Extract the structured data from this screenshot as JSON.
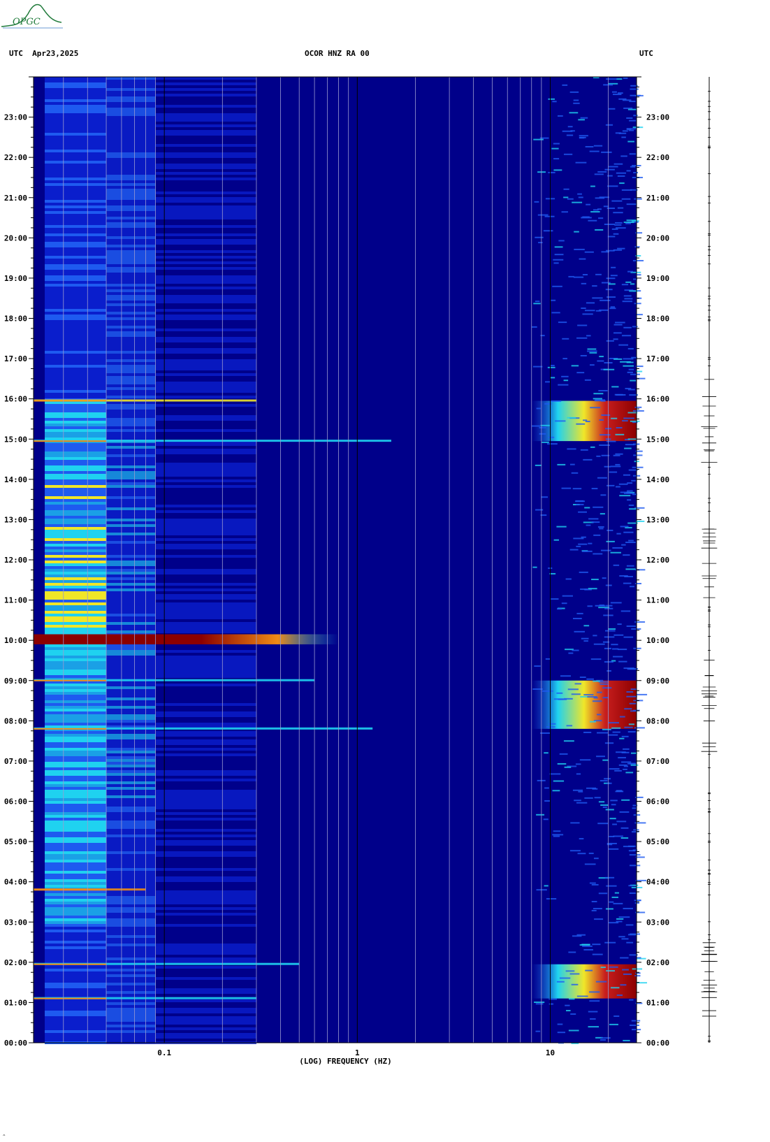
{
  "header": {
    "logo_text": "OPGC",
    "left": "UTC  Apr23,2025",
    "center": "OCOR HNZ RA 00",
    "right": "UTC"
  },
  "colors": {
    "background": "#00008a",
    "low": "#0a1ecc",
    "mid": "#1e5af0",
    "cyan": "#1fd2f0",
    "yellow": "#f0e628",
    "orange": "#f08c14",
    "red": "#c81e1e",
    "darkred": "#8c0000",
    "axis": "#000000",
    "logo": "#1f7a3a"
  },
  "chart_data": {
    "type": "heatmap",
    "title": "OCOR HNZ RA 00",
    "date": "Apr23,2025",
    "xlabel": "(LOG) FREQUENCY (HZ)",
    "ylabel": "UTC",
    "x_scale": "log",
    "xlim": [
      0.021,
      28
    ],
    "x_ticks": [
      0.1,
      1,
      10
    ],
    "x_tick_labels": [
      "0.1",
      "1",
      "10"
    ],
    "ylim": [
      0,
      24
    ],
    "y_ticks": [
      "00:00",
      "01:00",
      "02:00",
      "03:00",
      "04:00",
      "05:00",
      "06:00",
      "07:00",
      "08:00",
      "09:00",
      "10:00",
      "11:00",
      "12:00",
      "13:00",
      "14:00",
      "15:00",
      "16:00",
      "17:00",
      "18:00",
      "19:00",
      "20:00",
      "21:00",
      "22:00",
      "23:00"
    ],
    "grid": true,
    "color_scale": [
      "dark blue",
      "blue",
      "cyan",
      "yellow",
      "orange",
      "red",
      "dark red"
    ],
    "features": [
      {
        "name": "low-frequency microseism band",
        "f_range": [
          0.021,
          0.05
        ],
        "t_range": [
          0,
          24
        ],
        "level": "cyan-yellow"
      },
      {
        "name": "transient",
        "f_range": [
          0.021,
          0.8
        ],
        "t_range": [
          9.9,
          10.15
        ],
        "level": "dark red"
      },
      {
        "name": "high-frequency burst",
        "f_range": [
          8,
          28
        ],
        "t_range": [
          1.1,
          1.95
        ],
        "level": "red"
      },
      {
        "name": "high-frequency burst",
        "f_range": [
          8,
          28
        ],
        "t_range": [
          7.8,
          9.0
        ],
        "level": "red"
      },
      {
        "name": "high-frequency burst",
        "f_range": [
          8,
          28
        ],
        "t_range": [
          14.95,
          15.95
        ],
        "level": "red"
      }
    ],
    "trace_hours": [
      1.1,
      1.95,
      7.8,
      9.0,
      11.5,
      12.2,
      15.0,
      15.95
    ]
  },
  "footer": {
    "mark": "^"
  }
}
